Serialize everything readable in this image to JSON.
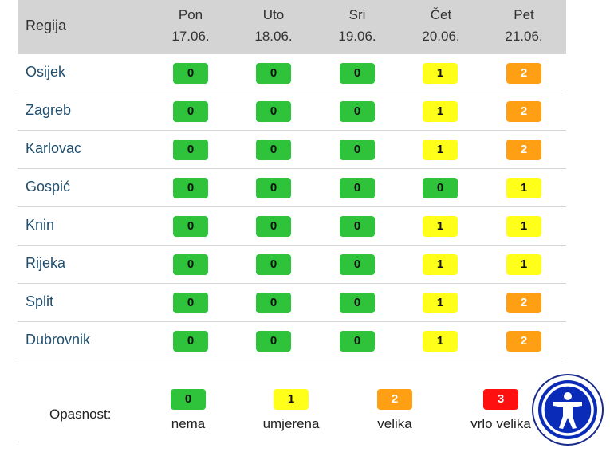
{
  "header": {
    "region_label": "Regija",
    "days": [
      {
        "name": "Pon",
        "date": "17.06."
      },
      {
        "name": "Uto",
        "date": "18.06."
      },
      {
        "name": "Sri",
        "date": "19.06."
      },
      {
        "name": "Čet",
        "date": "20.06."
      },
      {
        "name": "Pet",
        "date": "21.06."
      }
    ]
  },
  "rows": [
    {
      "region": "Osijek",
      "levels": [
        "0",
        "0",
        "0",
        "1",
        "2"
      ]
    },
    {
      "region": "Zagreb",
      "levels": [
        "0",
        "0",
        "0",
        "1",
        "2"
      ]
    },
    {
      "region": "Karlovac",
      "levels": [
        "0",
        "0",
        "0",
        "1",
        "2"
      ]
    },
    {
      "region": "Gospić",
      "levels": [
        "0",
        "0",
        "0",
        "0",
        "1"
      ]
    },
    {
      "region": "Knin",
      "levels": [
        "0",
        "0",
        "0",
        "1",
        "1"
      ]
    },
    {
      "region": "Rijeka",
      "levels": [
        "0",
        "0",
        "0",
        "1",
        "1"
      ]
    },
    {
      "region": "Split",
      "levels": [
        "0",
        "0",
        "0",
        "1",
        "2"
      ]
    },
    {
      "region": "Dubrovnik",
      "levels": [
        "0",
        "0",
        "0",
        "1",
        "2"
      ]
    }
  ],
  "legend": {
    "title": "Opasnost:",
    "items": [
      {
        "level": "0",
        "label": "nema",
        "color": "#2ec33a"
      },
      {
        "level": "1",
        "label": "umjerena",
        "color": "#ffff1a"
      },
      {
        "level": "2",
        "label": "velika",
        "color": "#ff9f14"
      },
      {
        "level": "3",
        "label": "vrlo velika",
        "color": "#ff1010"
      }
    ]
  },
  "accessibility_button": {
    "icon": "accessibility-icon"
  }
}
